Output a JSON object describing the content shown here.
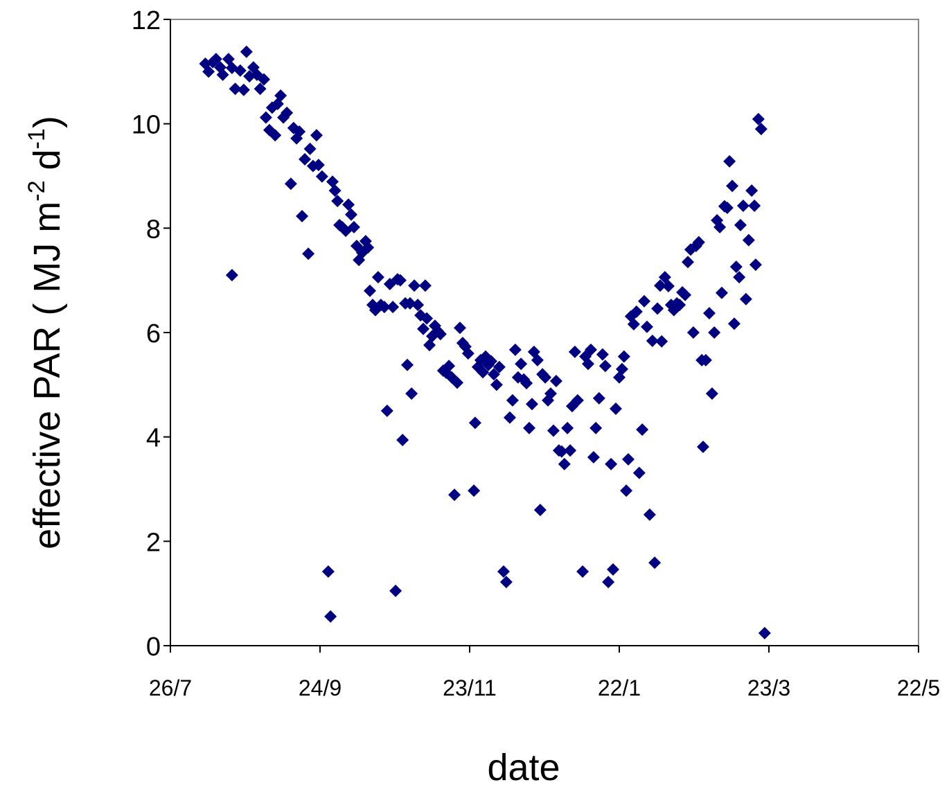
{
  "chart_data": {
    "type": "scatter",
    "xlabel": "date",
    "ylabel_parts": [
      "effective PAR  ( MJ m",
      "-2",
      " d",
      "-1",
      ")"
    ],
    "color": "#000080",
    "marker": "diamond",
    "xlim": [
      0,
      300
    ],
    "xticks": [
      {
        "value": 0,
        "label": "26/7"
      },
      {
        "value": 60,
        "label": "24/9"
      },
      {
        "value": 120,
        "label": "23/11"
      },
      {
        "value": 180,
        "label": "22/1"
      },
      {
        "value": 240,
        "label": "23/3"
      },
      {
        "value": 300,
        "label": "22/5"
      }
    ],
    "ylim": [
      0,
      12
    ],
    "yticks": [
      0,
      2,
      4,
      6,
      8,
      10,
      12
    ],
    "grid": false,
    "x": [
      14,
      15.3,
      17,
      18.3,
      20,
      21,
      23.3,
      24.7,
      24.7,
      26,
      28,
      29.4,
      30.5,
      31.7,
      33.3,
      34.7,
      36,
      37.5,
      38.3,
      39.7,
      40.8,
      42,
      43,
      44.2,
      45.3,
      46.7,
      48.3,
      49.4,
      50.6,
      51.7,
      52.8,
      53.9,
      55.3,
      56,
      57.2,
      58.6,
      59.4,
      60.8,
      63.3,
      64.2,
      65,
      66,
      67,
      67.8,
      68.9,
      70.3,
      71.4,
      72.5,
      73.6,
      74.7,
      75.6,
      76.9,
      78.3,
      79.2,
      80,
      81.1,
      82.2,
      83.3,
      84.4,
      85.8,
      86.9,
      88,
      89.2,
      90.3,
      91.1,
      92.2,
      93.1,
      94.2,
      95,
      96.1,
      96.7,
      97.8,
      99.2,
      100.3,
      101.4,
      102.2,
      102.8,
      103.9,
      105,
      106.1,
      107.2,
      108.3,
      109.4,
      110.6,
      111.7,
      112.8,
      113.9,
      115,
      116.1,
      117.2,
      118.3,
      119.4,
      121.7,
      122.2,
      123.3,
      124.4,
      125.3,
      126.4,
      127.5,
      128.6,
      129.7,
      130.8,
      131.9,
      133.6,
      134.7,
      136.1,
      137.2,
      138.3,
      139.4,
      140.6,
      141.7,
      142.8,
      143.9,
      145,
      145.8,
      147.2,
      148.3,
      149.2,
      150.3,
      151.4,
      152.5,
      153.6,
      154.7,
      155.8,
      156.9,
      158,
      159.2,
      160.3,
      161.1,
      162.2,
      163.3,
      165.3,
      166.4,
      167.5,
      168.6,
      169.7,
      170.6,
      171.9,
      173.3,
      174.4,
      175.6,
      176.7,
      177.5,
      178.6,
      180,
      181.1,
      181.9,
      182.8,
      183.6,
      184.7,
      185.8,
      186.9,
      188,
      189.2,
      190,
      191.1,
      192.2,
      193.3,
      194.2,
      195.3,
      196.4,
      197,
      198.3,
      199.7,
      200.8,
      201.9,
      203.1,
      204.2,
      205.3,
      206.4,
      207.5,
      208.6,
      209.7,
      210.8,
      211.9,
      213.1,
      213.6,
      214.7,
      216.1,
      217.2,
      218.1,
      219.2,
      220.3,
      221.1,
      222.2,
      223.3,
      224.2,
      225.3,
      226.1,
      226.9,
      228.1,
      228.6,
      229.7,
      230.8,
      231.9,
      233.1,
      234.2,
      234.7,
      235.8,
      236.9,
      238.3
    ],
    "values": [
      11.15,
      11.0,
      11.18,
      11.24,
      11.08,
      10.94,
      11.24,
      11.07,
      7.1,
      10.67,
      11.02,
      10.65,
      11.38,
      10.91,
      11.08,
      10.94,
      10.67,
      10.85,
      10.12,
      9.88,
      10.31,
      9.78,
      10.38,
      10.54,
      10.12,
      10.21,
      8.85,
      9.92,
      9.72,
      9.85,
      8.23,
      9.32,
      7.51,
      9.52,
      9.19,
      9.78,
      9.21,
      8.99,
      1.42,
      0.56,
      8.89,
      8.72,
      8.52,
      8.06,
      8.02,
      7.95,
      8.45,
      8.26,
      8.02,
      7.66,
      7.39,
      7.53,
      7.75,
      7.63,
      6.8,
      6.53,
      6.43,
      7.06,
      6.53,
      6.49,
      4.5,
      6.93,
      6.49,
      1.05,
      7.02,
      7.0,
      3.94,
      6.56,
      5.38,
      6.56,
      4.83,
      6.9,
      6.53,
      6.33,
      6.07,
      6.9,
      6.27,
      5.76,
      5.93,
      6.13,
      6.03,
      5.97,
      5.27,
      5.23,
      5.36,
      5.14,
      2.89,
      5.04,
      6.09,
      5.8,
      5.73,
      5.6,
      2.97,
      4.27,
      5.34,
      5.47,
      5.24,
      5.54,
      5.38,
      5.45,
      5.2,
      5.0,
      5.34,
      1.42,
      1.22,
      4.37,
      4.7,
      5.67,
      5.14,
      5.4,
      5.1,
      5.03,
      4.17,
      4.63,
      5.63,
      5.47,
      2.6,
      5.2,
      5.14,
      4.7,
      4.83,
      4.12,
      5.07,
      3.74,
      3.72,
      3.48,
      4.17,
      3.74,
      4.59,
      5.63,
      4.7,
      1.42,
      5.54,
      5.4,
      5.67,
      3.61,
      4.17,
      4.74,
      5.58,
      5.36,
      1.22,
      3.48,
      1.46,
      4.54,
      5.14,
      5.3,
      5.54,
      2.97,
      3.57,
      6.31,
      6.16,
      6.4,
      3.31,
      4.14,
      6.6,
      6.11,
      2.51,
      5.84,
      1.59,
      6.46,
      6.9,
      5.83,
      7.06,
      6.89,
      6.53,
      6.43,
      6.56,
      6.53,
      6.77,
      6.72,
      7.35,
      7.59,
      6.0,
      7.66,
      7.73,
      5.47,
      3.81,
      5.47,
      6.37,
      4.83,
      6.0,
      8.15,
      8.02,
      6.76,
      8.42,
      8.39,
      9.28,
      8.81,
      6.17,
      7.26,
      7.06,
      8.06,
      8.43,
      6.64,
      7.77,
      8.72,
      8.43,
      7.3,
      10.09,
      9.9,
      0.24
    ]
  }
}
